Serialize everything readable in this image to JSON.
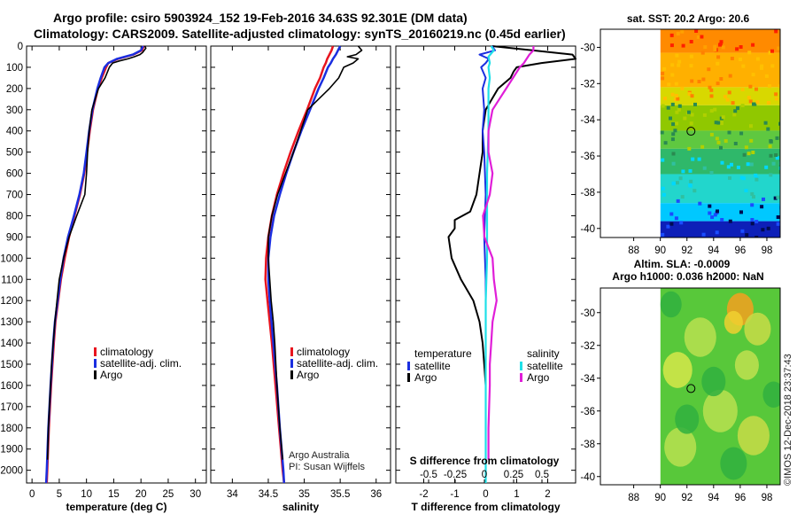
{
  "header": {
    "title_line1": "Argo profile: csiro 5903924_152 19-Feb-2016 34.63S 92.301E (DM data)",
    "title_line2": "Climatology: CARS2009. Satellite-adjusted climatology: synTS_20160219.nc (0.45d earlier)"
  },
  "colors": {
    "climatology": "#e8141e",
    "satellite": "#1a2ee0",
    "argo": "#000000",
    "satellite_salinity": "#1fe0e8",
    "argo_salinity": "#e01ed8"
  },
  "chart_data": [
    {
      "type": "line",
      "id": "temperature",
      "xlabel": "temperature (deg C)",
      "ylabel": "",
      "xlim": [
        -1,
        32
      ],
      "ylim": [
        2060,
        0
      ],
      "xticks": [
        "0",
        "5",
        "10",
        "15",
        "20",
        "25",
        "30"
      ],
      "xtick_values": [
        0,
        5,
        10,
        15,
        20,
        25,
        30
      ],
      "yticks": [
        "0",
        "100",
        "200",
        "300",
        "400",
        "500",
        "600",
        "700",
        "800",
        "900",
        "1000",
        "1100",
        "1200",
        "1300",
        "1400",
        "1500",
        "1600",
        "1700",
        "1800",
        "1900",
        "2000"
      ],
      "ytick_values": [
        0,
        100,
        200,
        300,
        400,
        500,
        600,
        700,
        800,
        900,
        1000,
        1100,
        1200,
        1300,
        1400,
        1500,
        1600,
        1700,
        1800,
        1900,
        2000
      ],
      "legend": [
        "climatology",
        "satellite-adj. clim.",
        "Argo"
      ],
      "series": [
        {
          "name": "climatology",
          "color": "#e8141e",
          "depth": [
            0,
            20,
            40,
            60,
            80,
            100,
            150,
            200,
            300,
            400,
            500,
            600,
            700,
            800,
            900,
            1000,
            1100,
            1200,
            1300,
            1400,
            1600,
            1800,
            2000,
            2060
          ],
          "values": [
            20.5,
            20.2,
            18.6,
            15.8,
            14.0,
            13.6,
            12.8,
            12.1,
            11.2,
            10.6,
            10.1,
            9.6,
            8.8,
            7.8,
            6.8,
            6.0,
            5.3,
            4.8,
            4.3,
            4.0,
            3.5,
            3.1,
            2.8,
            2.7
          ]
        },
        {
          "name": "satellite-adj. clim.",
          "color": "#1a2ee0",
          "depth": [
            0,
            20,
            40,
            60,
            80,
            100,
            150,
            200,
            300,
            400,
            500,
            600,
            700,
            800,
            900,
            1000,
            1100,
            1200,
            1300,
            1400,
            1600,
            1800,
            2000,
            2060
          ],
          "values": [
            20.4,
            20.0,
            18.5,
            15.6,
            14.0,
            13.3,
            12.6,
            12.0,
            11.1,
            10.5,
            10.0,
            9.5,
            8.7,
            7.7,
            6.6,
            5.8,
            5.2,
            4.7,
            4.2,
            3.9,
            3.4,
            3.0,
            2.7,
            2.6
          ]
        },
        {
          "name": "Argo",
          "color": "#000000",
          "depth": [
            0,
            10,
            20,
            30,
            40,
            50,
            60,
            70,
            80,
            100,
            150,
            200,
            300,
            400,
            500,
            600,
            700,
            800,
            900,
            1000,
            1100,
            1200,
            1300,
            1400,
            1500,
            1600,
            1700,
            1800,
            1900,
            1950
          ],
          "values": [
            20.7,
            20.9,
            20.6,
            20.3,
            19.8,
            18.8,
            17.6,
            16.0,
            14.8,
            14.2,
            13.4,
            12.2,
            11.0,
            10.5,
            10.2,
            10.0,
            9.7,
            8.2,
            6.8,
            5.8,
            5.0,
            4.6,
            4.2,
            3.9,
            3.6,
            3.4,
            3.2,
            3.0,
            2.9,
            2.85
          ]
        }
      ]
    },
    {
      "type": "line",
      "id": "salinity",
      "xlabel": "salinity",
      "ylabel": "",
      "xlim": [
        33.7,
        36.2
      ],
      "ylim": [
        2060,
        0
      ],
      "xticks": [
        "34",
        "34.5",
        "35",
        "35.5",
        "36"
      ],
      "xtick_values": [
        34,
        34.5,
        35,
        35.5,
        36
      ],
      "legend": [
        "climatology",
        "satellite-adj. clim.",
        "Argo"
      ],
      "annotations": [
        "Argo Australia",
        "PI: Susan Wijffels"
      ],
      "series": [
        {
          "name": "climatology",
          "color": "#e8141e",
          "depth": [
            0,
            20,
            40,
            60,
            80,
            100,
            150,
            200,
            300,
            400,
            500,
            600,
            700,
            800,
            900,
            1000,
            1100,
            1200,
            1400,
            1600,
            1800,
            2000,
            2060
          ],
          "values": [
            35.4,
            35.38,
            35.35,
            35.32,
            35.3,
            35.27,
            35.22,
            35.15,
            35.04,
            34.92,
            34.81,
            34.71,
            34.62,
            34.55,
            34.5,
            34.47,
            34.46,
            34.49,
            34.55,
            34.6,
            34.65,
            34.7,
            34.72
          ]
        },
        {
          "name": "satellite-adj. clim.",
          "color": "#1a2ee0",
          "depth": [
            0,
            20,
            40,
            60,
            80,
            100,
            150,
            200,
            300,
            400,
            500,
            600,
            700,
            800,
            900,
            1000,
            1100,
            1200,
            1400,
            1600,
            1800,
            2000,
            2060
          ],
          "values": [
            35.5,
            35.47,
            35.44,
            35.4,
            35.37,
            35.33,
            35.27,
            35.2,
            35.08,
            34.96,
            34.85,
            34.75,
            34.66,
            34.58,
            34.53,
            34.5,
            34.5,
            34.52,
            34.57,
            34.62,
            34.66,
            34.71,
            34.72
          ]
        },
        {
          "name": "Argo",
          "color": "#000000",
          "depth": [
            0,
            20,
            40,
            50,
            60,
            80,
            100,
            150,
            200,
            250,
            300,
            400,
            500,
            600,
            700,
            800,
            900,
            1000,
            1100,
            1200,
            1300,
            1400,
            1600,
            1800,
            1950
          ],
          "values": [
            35.75,
            35.8,
            35.72,
            35.6,
            35.75,
            35.68,
            35.55,
            35.48,
            35.35,
            35.2,
            35.05,
            34.95,
            34.85,
            34.74,
            34.63,
            34.55,
            34.5,
            34.5,
            34.52,
            34.54,
            34.57,
            34.59,
            34.62,
            34.66,
            34.7
          ]
        }
      ]
    },
    {
      "type": "line",
      "id": "difference",
      "xlabel": "T difference from climatology",
      "xlabel_top": "S difference from climatology",
      "xlim": [
        -2.9,
        2.9
      ],
      "ylim": [
        2060,
        0
      ],
      "xticks": [
        "-2",
        "-1",
        "0",
        "1",
        "2"
      ],
      "xtick_values": [
        -2,
        -1,
        0,
        1,
        2
      ],
      "s_xticks": [
        "-0.5",
        "-0.25",
        "0",
        "0.25",
        "0.5"
      ],
      "s_xtick_values": [
        -0.5,
        -0.25,
        0,
        0.25,
        0.5
      ],
      "legend_temperature_title": "temperature",
      "legend_salinity_title": "salinity",
      "legend_temperature": [
        "satellite",
        "Argo"
      ],
      "legend_salinity": [
        "satellite",
        "Argo"
      ],
      "series": [
        {
          "name": "T satellite",
          "color": "#1a2ee0",
          "depth": [
            0,
            20,
            40,
            60,
            80,
            100,
            150,
            200,
            300,
            400,
            500,
            700,
            900,
            1100,
            1300,
            1500,
            1700,
            1800,
            1950
          ],
          "values": [
            0.2,
            0.3,
            -0.2,
            0.1,
            0.0,
            -0.15,
            0.0,
            -0.1,
            -0.05,
            -0.1,
            -0.05,
            0.0,
            -0.05,
            0.0,
            0.0,
            0.0,
            0.0,
            0.0,
            0.0
          ]
        },
        {
          "name": "T Argo",
          "color": "#000000",
          "depth": [
            0,
            20,
            40,
            60,
            80,
            100,
            120,
            150,
            200,
            250,
            300,
            400,
            500,
            600,
            700,
            780,
            820,
            860,
            900,
            1000,
            1100,
            1200,
            1300,
            1400,
            1500,
            1600,
            1800,
            1950
          ],
          "values": [
            0.2,
            1.5,
            2.8,
            2.9,
            1.8,
            1.0,
            0.9,
            0.8,
            0.4,
            0.2,
            0.0,
            -0.1,
            -0.1,
            -0.2,
            -0.3,
            -0.5,
            -1.0,
            -1.0,
            -1.2,
            -1.1,
            -0.8,
            -0.4,
            -0.2,
            -0.1,
            -0.05,
            0.0,
            0.0,
            0.0
          ]
        },
        {
          "name": "S satellite",
          "color": "#1fe0e8",
          "depth": [
            0,
            20,
            50,
            80,
            100,
            150,
            200,
            300,
            400,
            600,
            800,
            1000,
            1200,
            1400,
            1600,
            1800,
            2000,
            2060
          ],
          "values": [
            0.04,
            0.06,
            0.02,
            0.03,
            0.02,
            0.03,
            0.02,
            0.02,
            0.02,
            0.01,
            0.01,
            0.01,
            0.0,
            0.0,
            0.0,
            0.0,
            0.0,
            0.0
          ]
        },
        {
          "name": "S Argo",
          "color": "#e01ed8",
          "depth": [
            0,
            20,
            40,
            60,
            80,
            100,
            150,
            200,
            250,
            300,
            400,
            500,
            600,
            700,
            800,
            900,
            1000,
            1100,
            1200,
            1300,
            1400,
            1500,
            1600,
            1800,
            1950
          ],
          "values": [
            0.35,
            0.35,
            0.32,
            0.3,
            0.28,
            0.25,
            0.2,
            0.15,
            0.1,
            0.05,
            0.02,
            0.02,
            0.05,
            0.03,
            -0.02,
            -0.01,
            0.05,
            0.06,
            0.08,
            0.05,
            0.04,
            0.03,
            0.03,
            0.02,
            0.02
          ]
        }
      ]
    },
    {
      "type": "heatmap",
      "id": "sst_map",
      "title": "sat. SST: 20.2 Argo: 20.6",
      "xlim": [
        85.5,
        99
      ],
      "ylim": [
        -40.5,
        -29
      ],
      "xticks": [
        "88",
        "90",
        "92",
        "94",
        "96",
        "98"
      ],
      "xtick_values": [
        88,
        90,
        92,
        94,
        96,
        98
      ],
      "yticks": [
        "-30",
        "-32",
        "-34",
        "-36",
        "-38",
        "-40"
      ],
      "ytick_values": [
        -30,
        -32,
        -34,
        -36,
        -38,
        -40
      ],
      "data_lon_range": [
        90,
        99
      ],
      "marker": {
        "lon": 92.3,
        "lat": -34.63
      },
      "bands": [
        {
          "lat_top": -29,
          "lat_bottom": -30.3,
          "color": "#ff8a00"
        },
        {
          "lat_top": -30.3,
          "lat_bottom": -32.2,
          "color": "#ffb000"
        },
        {
          "lat_top": -32.2,
          "lat_bottom": -33.2,
          "color": "#d8d800"
        },
        {
          "lat_top": -33.2,
          "lat_bottom": -34.6,
          "color": "#90c800"
        },
        {
          "lat_top": -34.6,
          "lat_bottom": -35.6,
          "color": "#5fc840"
        },
        {
          "lat_top": -35.6,
          "lat_bottom": -37.0,
          "color": "#2fb86a"
        },
        {
          "lat_top": -37.0,
          "lat_bottom": -38.6,
          "color": "#22d6cc"
        },
        {
          "lat_top": -38.6,
          "lat_bottom": -39.6,
          "color": "#00c8ff"
        },
        {
          "lat_top": -39.6,
          "lat_bottom": -40.5,
          "color": "#0d1fb8"
        }
      ]
    },
    {
      "type": "heatmap",
      "id": "sla_map",
      "title": "Altim. SLA: -0.0009",
      "subtitle": "Argo h1000: 0.036 h2000: NaN",
      "xlim": [
        85.5,
        99
      ],
      "ylim": [
        -40.5,
        -28.5
      ],
      "xticks": [
        "88",
        "90",
        "92",
        "94",
        "96",
        "98"
      ],
      "xtick_values": [
        88,
        90,
        92,
        94,
        96,
        98
      ],
      "yticks": [
        "-30",
        "-32",
        "-34",
        "-36",
        "-38",
        "-40"
      ],
      "ytick_values": [
        -30,
        -32,
        -34,
        -36,
        -38,
        -40
      ],
      "data_lon_range": [
        90,
        99
      ],
      "marker": {
        "lon": 92.3,
        "lat": -34.63
      },
      "background_color": "#58c83a",
      "blobs": [
        {
          "lon": 96.0,
          "lat": -29.8,
          "r": 1.0,
          "color": "#f4a020"
        },
        {
          "lon": 95.5,
          "lat": -30.6,
          "r": 0.7,
          "color": "#f0d030"
        },
        {
          "lon": 97.3,
          "lat": -31.0,
          "r": 1.0,
          "color": "#c8dc48"
        },
        {
          "lon": 93.0,
          "lat": -31.5,
          "r": 1.2,
          "color": "#b8e050"
        },
        {
          "lon": 91.3,
          "lat": -33.5,
          "r": 1.1,
          "color": "#d6e84a"
        },
        {
          "lon": 96.5,
          "lat": -33.2,
          "r": 0.9,
          "color": "#c0e050"
        },
        {
          "lon": 94.5,
          "lat": -36.0,
          "r": 1.3,
          "color": "#b8e050"
        },
        {
          "lon": 97.0,
          "lat": -37.5,
          "r": 1.2,
          "color": "#c8dc48"
        },
        {
          "lon": 91.5,
          "lat": -38.2,
          "r": 1.2,
          "color": "#b8e050"
        },
        {
          "lon": 94.0,
          "lat": -34.2,
          "r": 0.9,
          "color": "#30b040"
        },
        {
          "lon": 92.0,
          "lat": -36.5,
          "r": 0.9,
          "color": "#30b040"
        },
        {
          "lon": 95.5,
          "lat": -39.2,
          "r": 1.0,
          "color": "#30b040"
        },
        {
          "lon": 98.5,
          "lat": -35.0,
          "r": 0.8,
          "color": "#30b040"
        },
        {
          "lon": 90.8,
          "lat": -29.5,
          "r": 0.8,
          "color": "#30b040"
        }
      ]
    }
  ],
  "footer": {
    "credit": "©IMOS 12-Dec-2018 23:37:43"
  }
}
